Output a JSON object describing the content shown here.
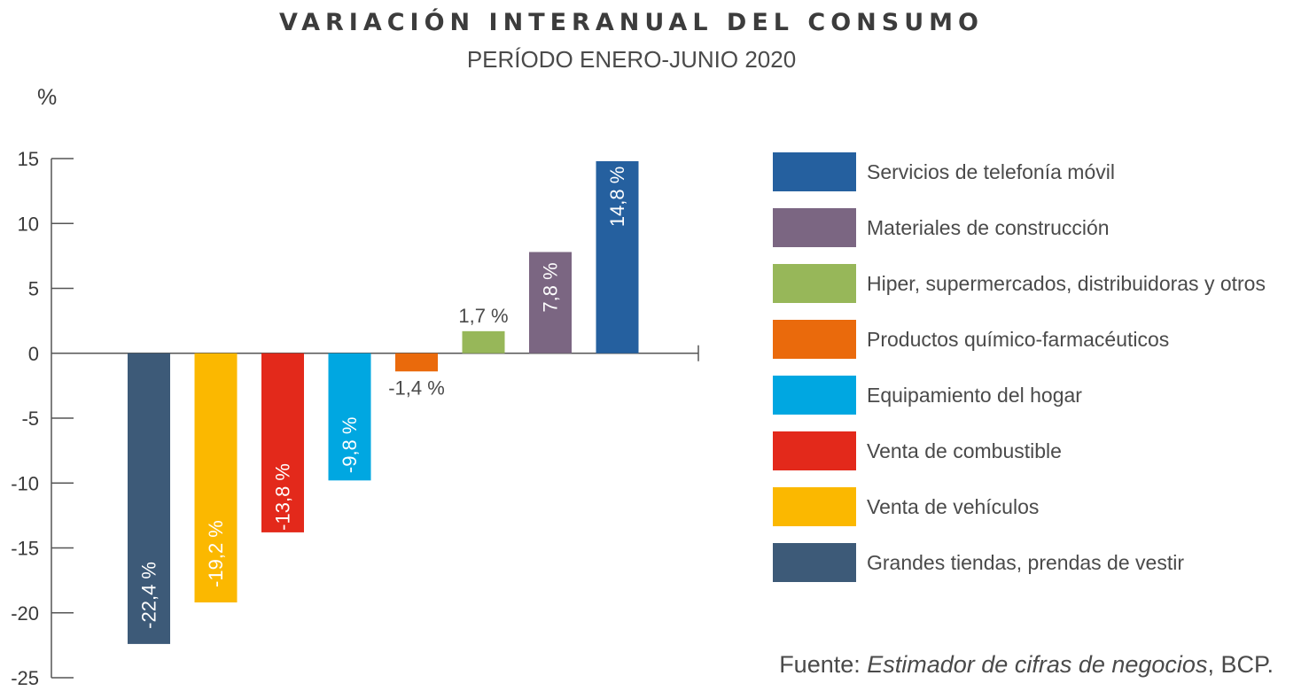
{
  "chart_data": {
    "type": "bar",
    "title": "VARIACIÓN INTERANUAL DEL CONSUMO",
    "subtitle": "PERÍODO ENERO-JUNIO 2020",
    "ylabel": "%",
    "ylim": [
      -25,
      15
    ],
    "yticks": [
      "15",
      "10",
      "5",
      "0",
      "-5",
      "-10",
      "-15",
      "-20",
      "-25"
    ],
    "ytick_values": [
      15,
      10,
      5,
      0,
      -5,
      -10,
      -15,
      -20,
      -25
    ],
    "categories": [
      "Grandes tiendas, prendas de vestir",
      "Venta de vehículos",
      "Venta de combustible",
      "Equipamiento del hogar",
      "Productos químico-farmacéuticos",
      "Hiper, supermercados, distribuidoras y otros",
      "Materiales de construcción",
      "Servicios de telefonía móvil"
    ],
    "values": [
      -22.4,
      -19.2,
      -13.8,
      -9.8,
      -1.4,
      1.7,
      7.8,
      14.8
    ],
    "data_labels": [
      "-22,4 %",
      "-19,2 %",
      "-13,8 %",
      "-9,8 %",
      "-1,4 %",
      "1,7 %",
      "7,8 %",
      "14,8 %"
    ],
    "colors": [
      "#3d5a78",
      "#fbb800",
      "#e3291b",
      "#00a7e1",
      "#ea6a0c",
      "#97b759",
      "#7b6682",
      "#25609f"
    ],
    "legend": {
      "placement": "right",
      "order": [
        7,
        6,
        5,
        4,
        3,
        2,
        1,
        0
      ]
    },
    "grid": false
  },
  "source": {
    "prefix": "Fuente: ",
    "italic": "Estimador de cifras de negocios",
    "suffix": ", BCP."
  }
}
